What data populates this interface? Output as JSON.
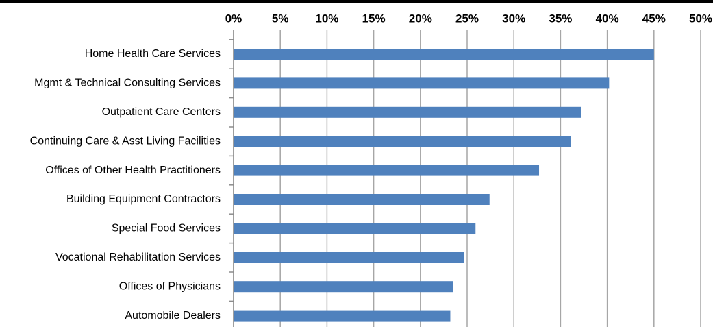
{
  "chart_data": {
    "type": "hbar",
    "categories": [
      "Home Health Care Services",
      "Mgmt & Technical Consulting Services",
      "Outpatient Care Centers",
      "Continuing Care & Asst Living Facilities",
      "Offices of Other Health Practitioners",
      "Building Equipment Contractors",
      "Special Food Services",
      "Vocational Rehabilitation Services",
      "Offices of Physicians",
      "Automobile Dealers"
    ],
    "values": [
      45,
      40.2,
      37.2,
      36.1,
      32.7,
      27.4,
      25.9,
      24.7,
      23.5,
      23.2
    ],
    "color": "#4f81bd",
    "xlim": [
      0,
      50
    ],
    "xticks": [
      {
        "value": 0,
        "label": "0%"
      },
      {
        "value": 5,
        "label": "5%"
      },
      {
        "value": 10,
        "label": "10%"
      },
      {
        "value": 15,
        "label": "15%"
      },
      {
        "value": 20,
        "label": "20%"
      },
      {
        "value": 25,
        "label": "25%"
      },
      {
        "value": 30,
        "label": "30%"
      },
      {
        "value": 35,
        "label": "35%"
      },
      {
        "value": 40,
        "label": "40%"
      },
      {
        "value": 45,
        "label": "45%"
      },
      {
        "value": 50,
        "label": "50%"
      }
    ],
    "grid": true
  }
}
